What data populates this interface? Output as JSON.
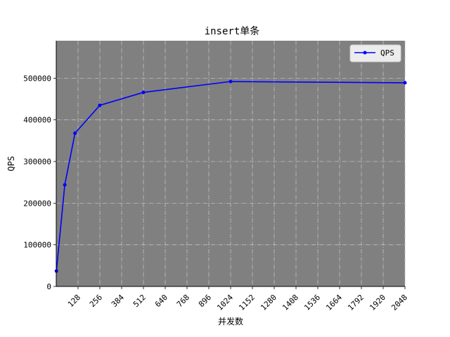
{
  "chart_data": {
    "type": "line",
    "title": "insert单条",
    "xlabel": "并发数",
    "ylabel": "QPS",
    "xlim": [
      0,
      2048
    ],
    "ylim": [
      0,
      590000
    ],
    "xticks": [
      128,
      256,
      384,
      512,
      640,
      768,
      896,
      1024,
      1152,
      1280,
      1408,
      1536,
      1664,
      1792,
      1920,
      2048
    ],
    "yticks": [
      0,
      100000,
      200000,
      300000,
      400000,
      500000
    ],
    "grid": true,
    "legend_position": "top-right",
    "series": [
      {
        "name": "QPS",
        "color": "#0000ff",
        "x": [
          1,
          50,
          110,
          256,
          512,
          1024,
          2048
        ],
        "y": [
          37000,
          244000,
          368000,
          435000,
          466000,
          492000,
          489000
        ]
      }
    ]
  },
  "colors": {
    "plot_background": "#808080",
    "grid": "#c0c0c0",
    "line": "#0000ff"
  }
}
